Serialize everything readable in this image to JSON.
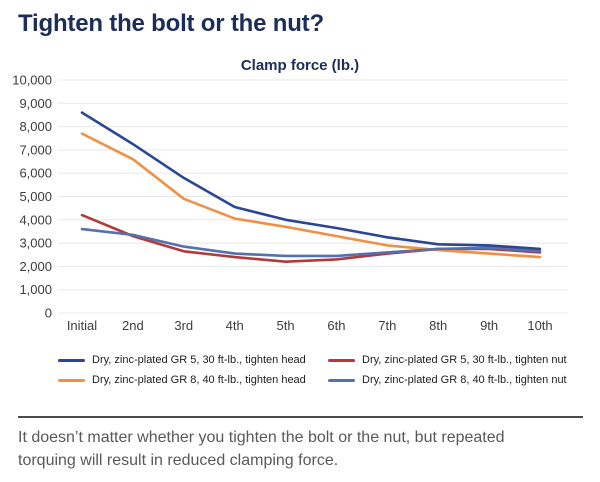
{
  "title": "Tighten the bolt or the nut?",
  "chart_data": {
    "type": "line",
    "title": "Clamp force (lb.)",
    "categories": [
      "Initial",
      "2nd",
      "3rd",
      "4th",
      "5th",
      "6th",
      "7th",
      "8th",
      "9th",
      "10th"
    ],
    "series": [
      {
        "name": "Dry, zinc-plated GR 5, 30 ft-lb., tighten nut",
        "color": "#b23a3a",
        "values": [
          4200,
          3300,
          2650,
          2400,
          2200,
          2300,
          2550,
          2750,
          2750,
          2600
        ]
      },
      {
        "name": "Dry, zinc-plated GR 8, 40 ft-lb., tighten head",
        "color": "#f09045",
        "values": [
          7700,
          6600,
          4900,
          4050,
          3700,
          3300,
          2900,
          2700,
          2550,
          2400
        ]
      },
      {
        "name": "Dry, zinc-plated GR 8, 40 ft-lb., tighten nut",
        "color": "#5570ad",
        "values": [
          3600,
          3350,
          2850,
          2550,
          2450,
          2450,
          2600,
          2750,
          2800,
          2650
        ]
      },
      {
        "name": "Dry, zinc-plated GR 5, 30 ft-lb., tighten head",
        "color": "#2b4693",
        "values": [
          8600,
          7250,
          5800,
          4550,
          4000,
          3650,
          3250,
          2950,
          2900,
          2750
        ]
      }
    ],
    "ylim": [
      0,
      10000
    ],
    "ytick_step": 1000,
    "ytick_labels": [
      "0",
      "1,000",
      "2,000",
      "3,000",
      "4,000",
      "5,000",
      "6,000",
      "7,000",
      "8,000",
      "9,000",
      "10,000"
    ],
    "grid": "horizontal",
    "legend_position": "bottom",
    "xlabel": "",
    "ylabel": ""
  },
  "legend": {
    "items": [
      {
        "label": "Dry, zinc-plated GR 5, 30 ft-lb., tighten head",
        "color": "#2b4693"
      },
      {
        "label": "Dry, zinc-plated GR 5, 30 ft-lb., tighten nut",
        "color": "#b23a3a"
      },
      {
        "label": "Dry, zinc-plated GR 8, 40 ft-lb., tighten head",
        "color": "#f09045"
      },
      {
        "label": "Dry, zinc-plated GR 8, 40 ft-lb., tighten nut",
        "color": "#5570ad"
      }
    ]
  },
  "caption": {
    "lines": [
      "It doesn’t matter whether you tighten the bolt or the nut, but repeated",
      "torquing will result in reduced clamping force."
    ]
  },
  "colors": {
    "title_navy": "#1c2d59",
    "axis_text": "#3d3d3d",
    "gridline": "#e8e8e8",
    "caption_gray": "#58595b",
    "divider_gray": "#4c4c4e"
  }
}
